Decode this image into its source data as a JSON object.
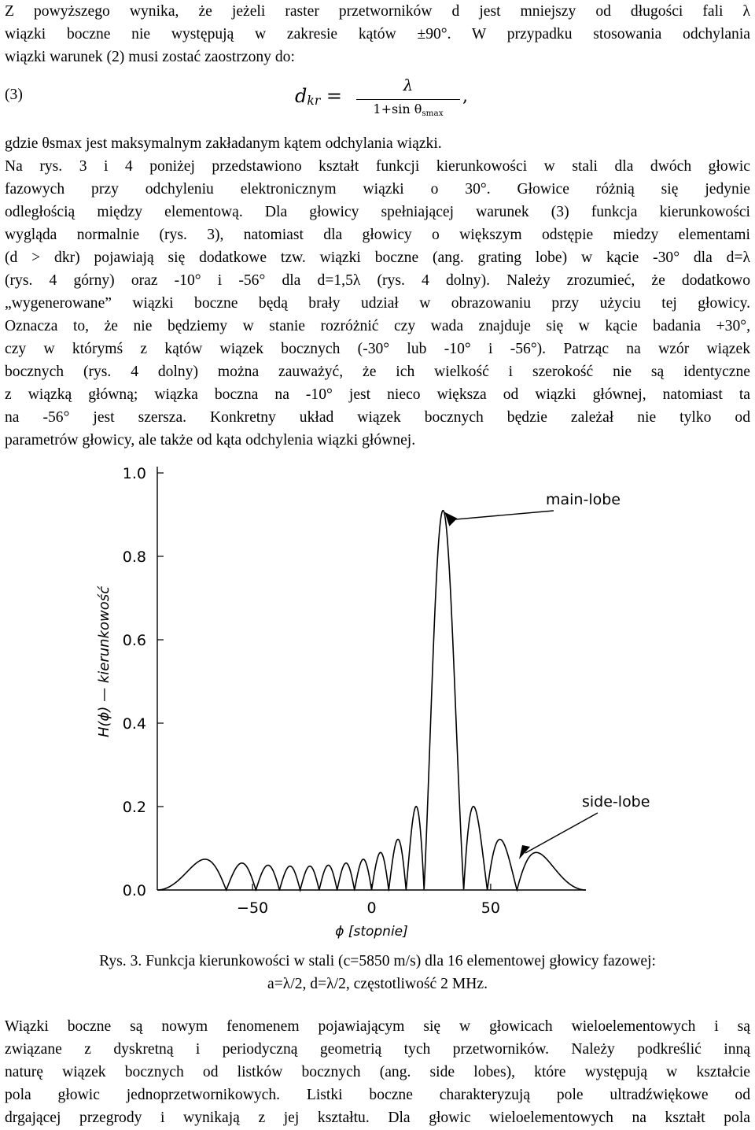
{
  "para1": [
    "Z powyższego wynika, że jeżeli raster przetworników d jest mniejszy od długości fali λ",
    "wiązki boczne nie występują w zakresie kątów ±90°. W przypadku stosowania odchylania",
    "wiązki warunek (2) musi zostać zaostrzony do:"
  ],
  "equation": {
    "label": "(3)",
    "lhs": "d",
    "lhs_sub": "kr",
    "equals": "=",
    "numerator": "λ",
    "denominator": "1+sin θ",
    "denominator_sub": "smax",
    "comma": ","
  },
  "para2": [
    "gdzie θsmax jest maksymalnym zakładanym kątem odchylania wiązki.",
    "Na rys. 3 i 4 poniżej przedstawiono kształt funkcji kierunkowości w stali dla dwóch głowic",
    "fazowych przy odchyleniu elektronicznym wiązki o 30°. Głowice różnią się jedynie",
    "odległością między elementową. Dla głowicy spełniającej warunek (3) funkcja kierunkowości",
    "wygląda normalnie (rys. 3), natomiast dla głowicy o większym odstępie miedzy elementami",
    "(d > dkr) pojawiają się dodatkowe tzw. wiązki boczne (ang. grating lobe) w kącie -30° dla d=λ",
    "(rys. 4 górny) oraz -10° i -56° dla d=1,5λ (rys. 4 dolny). Należy zrozumieć, że dodatkowo",
    "„wygenerowane” wiązki boczne będą brały udział w obrazowaniu przy użyciu tej głowicy.",
    "Oznacza to, że nie będziemy w stanie rozróżnić czy wada znajduje się w kącie badania +30°,",
    "czy w którymś z kątów wiązek bocznych (-30° lub -10° i -56°). Patrząc na wzór wiązek",
    "bocznych (rys. 4 dolny) można zauważyć, że ich wielkość i szerokość nie są identyczne",
    "z wiązką główną; wiązka boczna na -10° jest nieco większa od wiązki głównej, natomiast ta",
    "na -56° jest szersza. Konkretny układ wiązek bocznych będzie zależał nie tylko od",
    "parametrów głowicy, ale także od kąta odchylenia wiązki głównej."
  ],
  "chart_data": {
    "type": "line",
    "title": "",
    "xlabel": "ϕ [stopnie]",
    "ylabel": "H(ϕ) — kierunkowość",
    "xlim": [
      -90,
      90
    ],
    "ylim": [
      0,
      1.0
    ],
    "x_ticks": [
      "−50",
      "0",
      "50"
    ],
    "x_tick_values": [
      -50,
      0,
      50
    ],
    "y_ticks": [
      "0.0",
      "0.2",
      "0.4",
      "0.6",
      "0.8",
      "1.0"
    ],
    "y_tick_values": [
      0,
      0.2,
      0.4,
      0.6,
      0.8,
      1.0
    ],
    "grid": false,
    "annotations": [
      {
        "text": "main-lobe",
        "x": 30,
        "y": 0.91
      },
      {
        "text": "side-lobe",
        "x": 50,
        "y": 0.18
      }
    ],
    "series": [
      {
        "name": "",
        "model": "|sin(N·ψ/2) / (N·sin(ψ/2))|",
        "N": 16,
        "element_spacing": "λ/2",
        "steer_deg": 30,
        "peak": 0.91
      }
    ]
  },
  "caption": [
    "Rys. 3. Funkcja kierunkowości w stali (c=5850 m/s) dla 16 elementowej głowicy fazowej:",
    "a=λ/2, d=λ/2, częstotliwość 2 MHz."
  ],
  "para3": [
    "Wiązki boczne są nowym fenomenem pojawiającym się w głowicach wieloelementowych i są",
    "związane z dyskretną i periodyczną geometrią tych przetworników. Należy podkreślić inną",
    "naturę wiązek bocznych od listków bocznych (ang. side lobes), które występują w kształcie",
    "pola głowic jednoprzetwornikowych. Listki boczne charakteryzują pole ultradźwiękowe od",
    "drgającej przegrody i wynikają z jej kształtu. Dla głowic wieloelementowych na kształt pola"
  ]
}
